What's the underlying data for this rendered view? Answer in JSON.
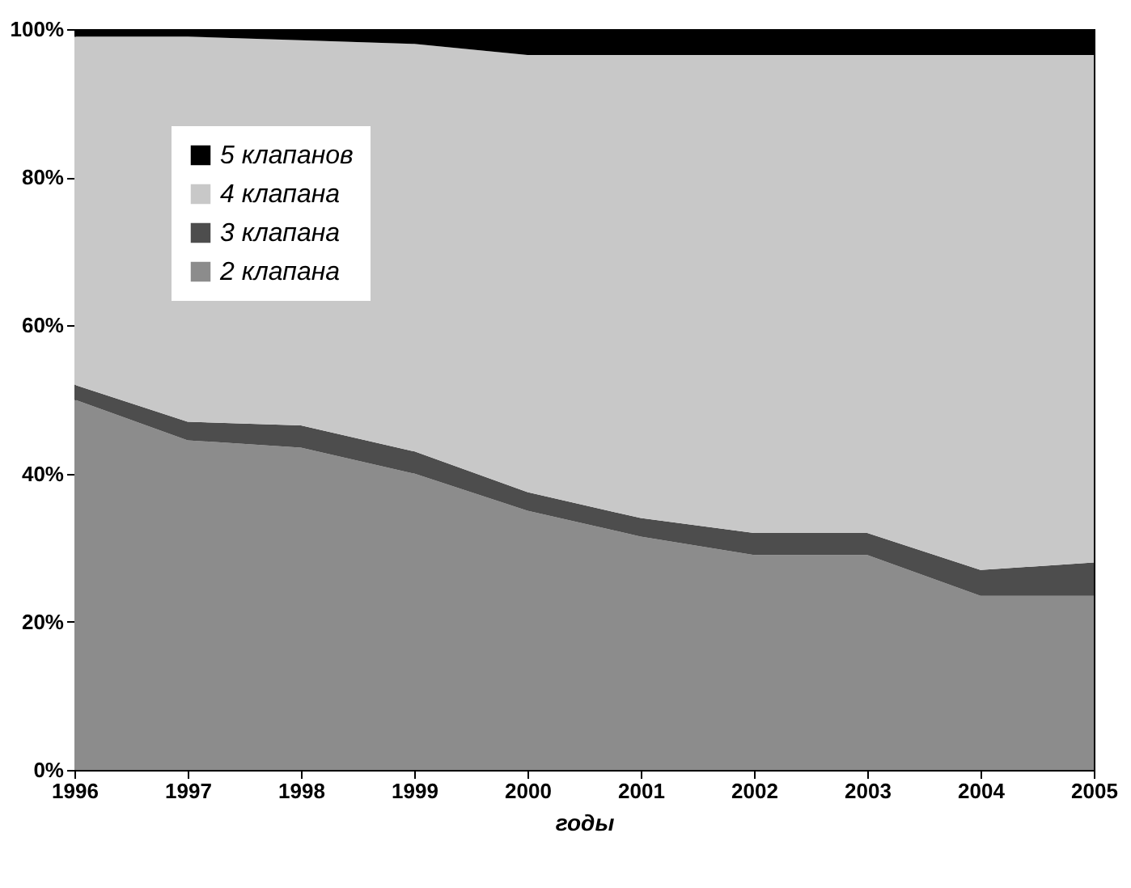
{
  "chart_data": {
    "type": "area",
    "stacked": true,
    "xlabel": "годы",
    "categories": [
      "1996",
      "1997",
      "1998",
      "1999",
      "2000",
      "2001",
      "2002",
      "2003",
      "2004",
      "2005"
    ],
    "series": [
      {
        "name": "2 клапана",
        "color": "#8c8c8c",
        "values": [
          50,
          44.5,
          43.5,
          40,
          35,
          31.5,
          29,
          29,
          23.5,
          23.5
        ]
      },
      {
        "name": "3 клапана",
        "color": "#4d4d4d",
        "values": [
          2,
          2.5,
          3,
          3,
          2.5,
          2.5,
          3,
          3,
          3.5,
          4.5
        ]
      },
      {
        "name": "4 клапана",
        "color": "#c8c8c8",
        "values": [
          47,
          52,
          52,
          55,
          59,
          62.5,
          64.5,
          64.5,
          69.5,
          68.5
        ]
      },
      {
        "name": "5 клапанов",
        "color": "#000000",
        "values": [
          1,
          1,
          1.5,
          2,
          3.5,
          3.5,
          3.5,
          3.5,
          3.5,
          3.5
        ]
      }
    ],
    "ylim": [
      0,
      100
    ],
    "yticks": [
      {
        "value": 0,
        "label": "0%"
      },
      {
        "value": 20,
        "label": "20%"
      },
      {
        "value": 40,
        "label": "40%"
      },
      {
        "value": 60,
        "label": "60%"
      },
      {
        "value": 80,
        "label": "80%"
      },
      {
        "value": 100,
        "label": "100%"
      }
    ],
    "grid": false,
    "legend": "top left"
  }
}
